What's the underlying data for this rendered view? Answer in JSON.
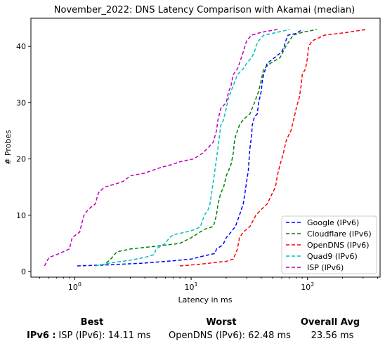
{
  "chart_data": {
    "type": "line",
    "title": "November_2022: DNS Latency Comparison with Akamai (median)",
    "xlabel": "Latency in ms",
    "ylabel": "# Probes",
    "xscale": "log",
    "xlim": [
      0.42,
      420
    ],
    "ylim": [
      -1,
      45
    ],
    "x_ticks": [
      {
        "value": 1,
        "base": "10",
        "exp": "0"
      },
      {
        "value": 10,
        "base": "10",
        "exp": "1"
      },
      {
        "value": 100,
        "base": "10",
        "exp": "2"
      }
    ],
    "y_ticks": [
      0,
      10,
      20,
      30,
      40
    ],
    "legend_position": "lower-right",
    "line_style": "dashed",
    "series": [
      {
        "name": "Google (IPv6)",
        "color": "#0000ff",
        "points": [
          [
            1.05,
            1
          ],
          [
            2.0,
            1.2
          ],
          [
            4.0,
            1.5
          ],
          [
            7.0,
            1.9
          ],
          [
            10.0,
            2.2
          ],
          [
            13.0,
            2.8
          ],
          [
            16.0,
            3.2
          ],
          [
            16.5,
            4
          ],
          [
            18.0,
            4.5
          ],
          [
            19.0,
            5
          ],
          [
            20.0,
            6
          ],
          [
            22.0,
            7
          ],
          [
            24.0,
            8
          ],
          [
            25.0,
            9
          ],
          [
            26.0,
            10
          ],
          [
            27.0,
            11
          ],
          [
            28.0,
            12
          ],
          [
            29.0,
            14
          ],
          [
            30.0,
            16
          ],
          [
            31.0,
            18
          ],
          [
            31.5,
            20
          ],
          [
            32.0,
            22
          ],
          [
            33.0,
            24
          ],
          [
            33.5,
            26
          ],
          [
            35.0,
            27.5
          ],
          [
            37.0,
            28
          ],
          [
            38.0,
            30
          ],
          [
            40.0,
            32
          ],
          [
            41.0,
            34
          ],
          [
            42.0,
            35
          ],
          [
            45.0,
            37
          ],
          [
            52.0,
            38
          ],
          [
            60.0,
            39
          ],
          [
            63.0,
            40
          ],
          [
            65.0,
            41
          ],
          [
            68.0,
            42
          ],
          [
            80.0,
            42.3
          ],
          [
            90.0,
            43
          ]
        ]
      },
      {
        "name": "Cloudflare (IPv6)",
        "color": "#008000",
        "points": [
          [
            1.7,
            1
          ],
          [
            2.0,
            2
          ],
          [
            2.3,
            3.5
          ],
          [
            3.0,
            4
          ],
          [
            5.0,
            4.5
          ],
          [
            8.0,
            5
          ],
          [
            10.0,
            6
          ],
          [
            13.0,
            7.5
          ],
          [
            15.5,
            8
          ],
          [
            16.5,
            10
          ],
          [
            17.0,
            12
          ],
          [
            18.0,
            14
          ],
          [
            19.0,
            15
          ],
          [
            20.0,
            17
          ],
          [
            21.0,
            18
          ],
          [
            22.0,
            19
          ],
          [
            23.0,
            21
          ],
          [
            23.5,
            23
          ],
          [
            24.0,
            24
          ],
          [
            25.0,
            25
          ],
          [
            26.0,
            26
          ],
          [
            28.0,
            27
          ],
          [
            32.0,
            28
          ],
          [
            35.0,
            30
          ],
          [
            38.0,
            32
          ],
          [
            40.0,
            34
          ],
          [
            42.0,
            36
          ],
          [
            48.0,
            37
          ],
          [
            58.0,
            38
          ],
          [
            65.0,
            40
          ],
          [
            70.0,
            41
          ],
          [
            75.0,
            42
          ],
          [
            90.0,
            42.5
          ],
          [
            120.0,
            43
          ]
        ]
      },
      {
        "name": "OpenDNS (IPv6)",
        "color": "#ff0000",
        "points": [
          [
            8.0,
            1
          ],
          [
            12.0,
            1.3
          ],
          [
            16.0,
            1.6
          ],
          [
            20.0,
            1.8
          ],
          [
            23.0,
            2.2
          ],
          [
            25.0,
            4
          ],
          [
            26.0,
            6
          ],
          [
            28.0,
            7
          ],
          [
            32.0,
            8
          ],
          [
            36.0,
            10
          ],
          [
            40.0,
            11
          ],
          [
            45.0,
            12
          ],
          [
            50.0,
            14
          ],
          [
            53.0,
            15
          ],
          [
            55.0,
            17
          ],
          [
            58.0,
            19
          ],
          [
            62.0,
            21
          ],
          [
            65.0,
            23
          ],
          [
            68.0,
            24
          ],
          [
            72.0,
            25
          ],
          [
            76.0,
            27
          ],
          [
            80.0,
            29
          ],
          [
            85.0,
            31
          ],
          [
            88.0,
            33
          ],
          [
            90.0,
            35
          ],
          [
            96.0,
            36
          ],
          [
            100.0,
            38
          ],
          [
            102.0,
            40
          ],
          [
            110.0,
            41
          ],
          [
            140.0,
            42
          ],
          [
            220.0,
            42.5
          ],
          [
            320.0,
            43
          ]
        ]
      },
      {
        "name": "Quad9 (IPv6)",
        "color": "#00bfbf",
        "points": [
          [
            1.5,
            1
          ],
          [
            2.0,
            1.5
          ],
          [
            3.0,
            2
          ],
          [
            4.0,
            2.5
          ],
          [
            4.8,
            3
          ],
          [
            5.0,
            4
          ],
          [
            6.0,
            5
          ],
          [
            6.5,
            6
          ],
          [
            7.0,
            6.5
          ],
          [
            9.0,
            7
          ],
          [
            11.0,
            7.5
          ],
          [
            12.0,
            8
          ],
          [
            12.5,
            9
          ],
          [
            13.0,
            10
          ],
          [
            14.0,
            11
          ],
          [
            14.5,
            12
          ],
          [
            15.0,
            14
          ],
          [
            15.5,
            16
          ],
          [
            16.0,
            18
          ],
          [
            16.5,
            20
          ],
          [
            17.0,
            22
          ],
          [
            17.5,
            24
          ],
          [
            18.0,
            26
          ],
          [
            19.0,
            27
          ],
          [
            20.0,
            29
          ],
          [
            21.0,
            31
          ],
          [
            22.0,
            32
          ],
          [
            24.0,
            34
          ],
          [
            25.0,
            35
          ],
          [
            28.0,
            36
          ],
          [
            30.0,
            37
          ],
          [
            33.0,
            38
          ],
          [
            35.0,
            39
          ],
          [
            36.0,
            40
          ],
          [
            38.0,
            41
          ],
          [
            42.0,
            42
          ],
          [
            55.0,
            42.5
          ],
          [
            70.0,
            43
          ]
        ]
      },
      {
        "name": "ISP (IPv6)",
        "color": "#bf00bf",
        "points": [
          [
            0.55,
            1
          ],
          [
            0.6,
            2.5
          ],
          [
            0.7,
            3
          ],
          [
            0.9,
            4
          ],
          [
            0.95,
            6
          ],
          [
            1.1,
            7
          ],
          [
            1.2,
            10
          ],
          [
            1.3,
            11
          ],
          [
            1.5,
            12
          ],
          [
            1.6,
            14
          ],
          [
            1.8,
            15
          ],
          [
            2.2,
            15.5
          ],
          [
            2.6,
            16
          ],
          [
            3.0,
            17
          ],
          [
            4.0,
            17.5
          ],
          [
            5.5,
            18.5
          ],
          [
            6.8,
            19
          ],
          [
            8.0,
            19.5
          ],
          [
            10.5,
            20
          ],
          [
            12.5,
            21
          ],
          [
            14.0,
            22
          ],
          [
            15.5,
            23
          ],
          [
            16.5,
            25
          ],
          [
            17.0,
            27
          ],
          [
            18.0,
            29
          ],
          [
            20.0,
            30
          ],
          [
            21.0,
            32
          ],
          [
            22.0,
            33
          ],
          [
            23.0,
            35
          ],
          [
            25.0,
            36
          ],
          [
            26.0,
            37
          ],
          [
            28.0,
            39
          ],
          [
            30.0,
            41
          ],
          [
            33.0,
            42
          ],
          [
            40.0,
            42.5
          ],
          [
            55.0,
            43
          ]
        ]
      }
    ]
  },
  "summary": {
    "headers": {
      "best": "Best",
      "worst": "Worst",
      "overall": "Overall Avg"
    },
    "row_label": "IPv6 :",
    "best": "ISP (IPv6): 14.11 ms",
    "worst": "OpenDNS (IPv6): 62.48 ms",
    "overall": "23.56 ms"
  }
}
